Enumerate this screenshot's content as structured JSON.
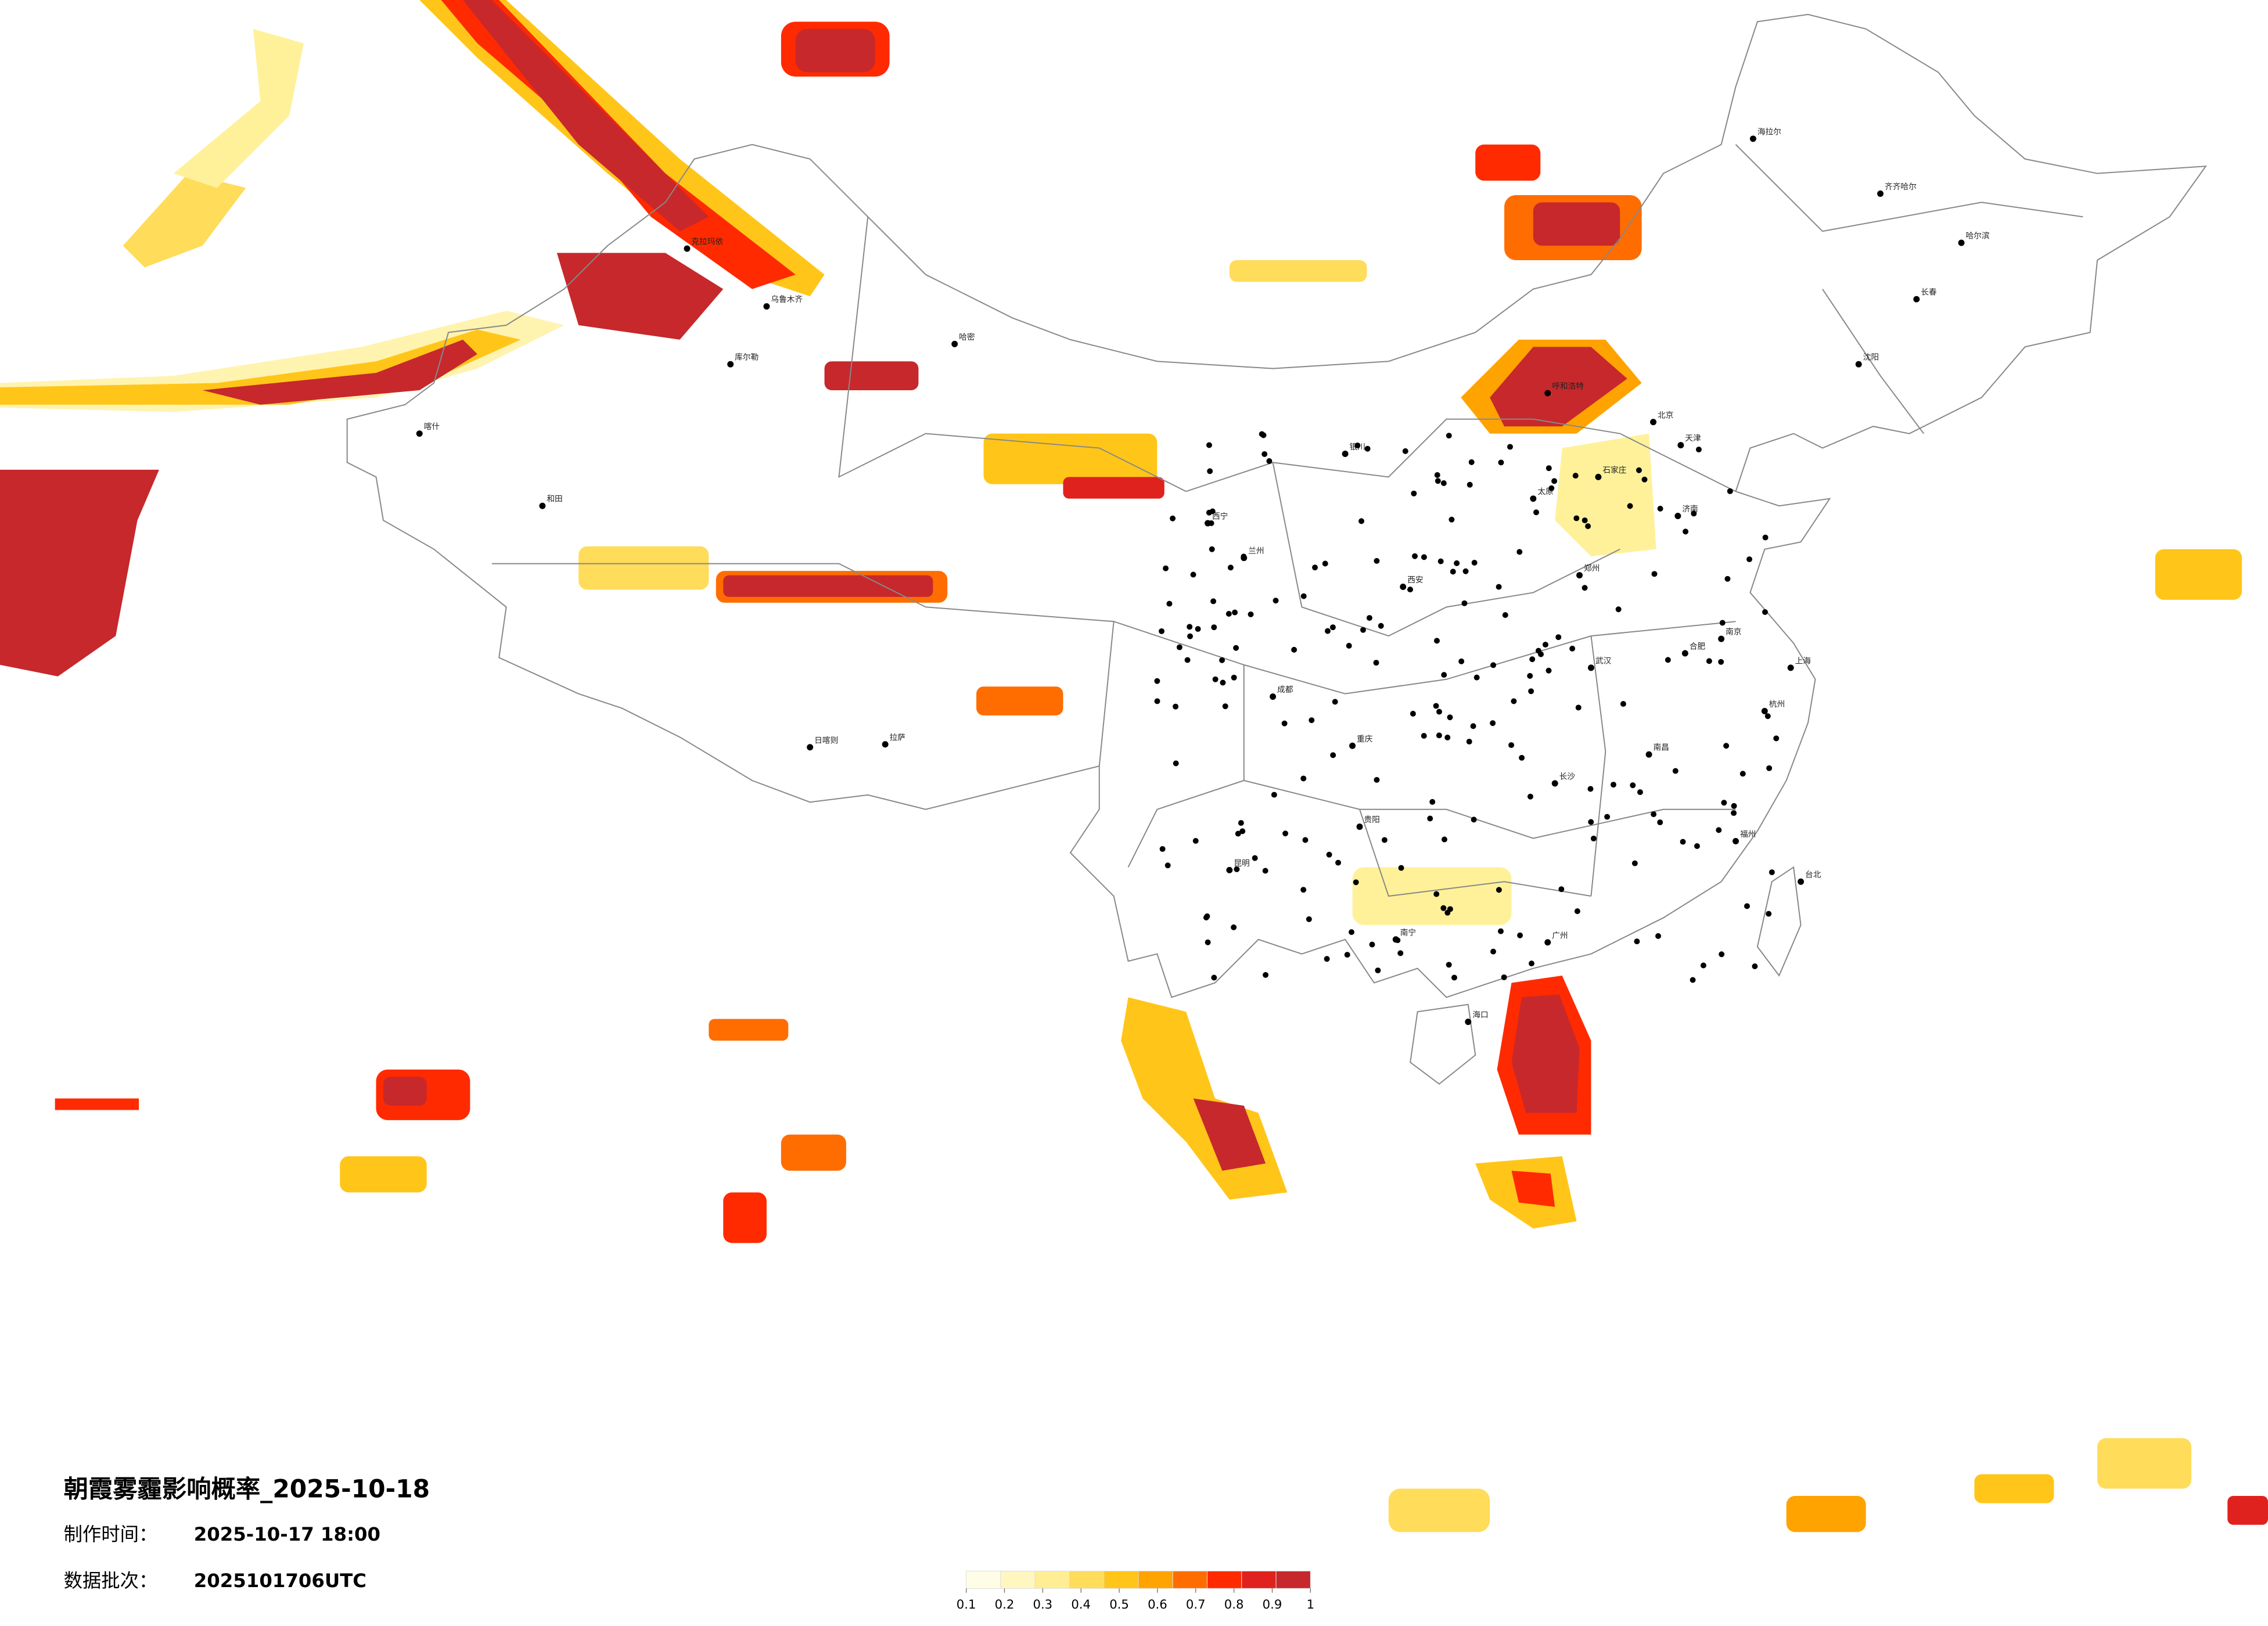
{
  "header": {
    "title": "朝霞雾霾影响概率_2025-10-18",
    "made_label": "制作时间：",
    "made_time": "2025-10-17 18:00",
    "batch_label": "数据批次：",
    "batch": "2025101706UTC"
  },
  "legend": {
    "ticks": [
      0.1,
      0.2,
      0.3,
      0.4,
      0.5,
      0.6,
      0.7,
      0.8,
      0.9,
      1
    ],
    "colors": [
      "#fffde6",
      "#fff6c0",
      "#ffee94",
      "#ffdc5a",
      "#ffc619",
      "#ffa300",
      "#ff6d00",
      "#ff2a00",
      "#e0221e",
      "#c7282c"
    ]
  },
  "cities": [
    "哈尔滨",
    "长春",
    "沈阳",
    "北京",
    "天津",
    "石家庄",
    "太原",
    "呼和浩特",
    "济南",
    "郑州",
    "西安",
    "兰州",
    "西宁",
    "银川",
    "乌鲁木齐",
    "拉萨",
    "成都",
    "重庆",
    "贵阳",
    "昆明",
    "南宁",
    "广州",
    "福州",
    "杭州",
    "南京",
    "上海",
    "武汉",
    "长沙",
    "南昌",
    "合肥",
    "海口",
    "台北",
    "和田",
    "喀什",
    "哈密",
    "克拉玛依",
    "库尔勒",
    "齐齐哈尔",
    "海拉尔",
    "日喀则"
  ]
}
